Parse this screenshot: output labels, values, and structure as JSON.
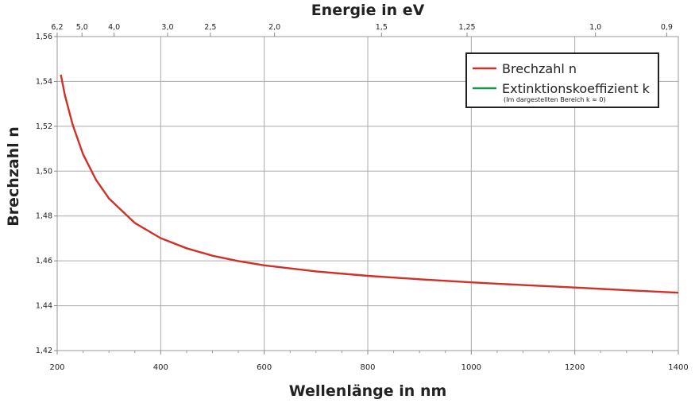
{
  "chart_data": {
    "type": "line",
    "title_top": "Energie in eV",
    "xlabel": "Wellenlänge in nm",
    "ylabel": "Brechzahl n",
    "xlim": [
      200,
      1400
    ],
    "ylim": [
      1.42,
      1.56
    ],
    "grid": true,
    "x_ticks": [
      200,
      400,
      600,
      800,
      1000,
      1200,
      1400
    ],
    "x_tick_labels": [
      "200",
      "400",
      "600",
      "800",
      "1000",
      "1200",
      "1400"
    ],
    "y_ticks": [
      1.42,
      1.44,
      1.46,
      1.48,
      1.5,
      1.52,
      1.54,
      1.56
    ],
    "y_tick_labels": [
      "1,42",
      "1,44",
      "1,46",
      "1,48",
      "1,50",
      "1,52",
      "1,54",
      "1,56"
    ],
    "top_ticks_ev": [
      6.2,
      5.0,
      4.0,
      3.0,
      2.5,
      2.0,
      1.5,
      1.25,
      1.0,
      0.9
    ],
    "top_tick_labels": [
      "6,2",
      "5,0",
      "4,0",
      "3,0",
      "2,5",
      "2,0",
      "1,5",
      "1,25",
      "1,0",
      "0,9"
    ],
    "legend_position": "top-right",
    "series": [
      {
        "name": "Brechzahl n",
        "color": "#d03027",
        "x": [
          207,
          215,
          230,
          250,
          275,
          300,
          350,
          400,
          450,
          500,
          550,
          600,
          700,
          800,
          900,
          1000,
          1100,
          1200,
          1300,
          1400
        ],
        "y": [
          1.543,
          1.5337,
          1.5207,
          1.5075,
          1.4961,
          1.4878,
          1.4769,
          1.4701,
          1.4656,
          1.4623,
          1.4599,
          1.458,
          1.4553,
          1.4533,
          1.4518,
          1.4504,
          1.4492,
          1.4481,
          1.4469,
          1.4458
        ]
      },
      {
        "name": "Extinktionskoeffizient k",
        "color": "#1a9641",
        "x": [],
        "y": [],
        "note": "(Im dargestellten Bereich k ≈ 0)"
      }
    ]
  }
}
